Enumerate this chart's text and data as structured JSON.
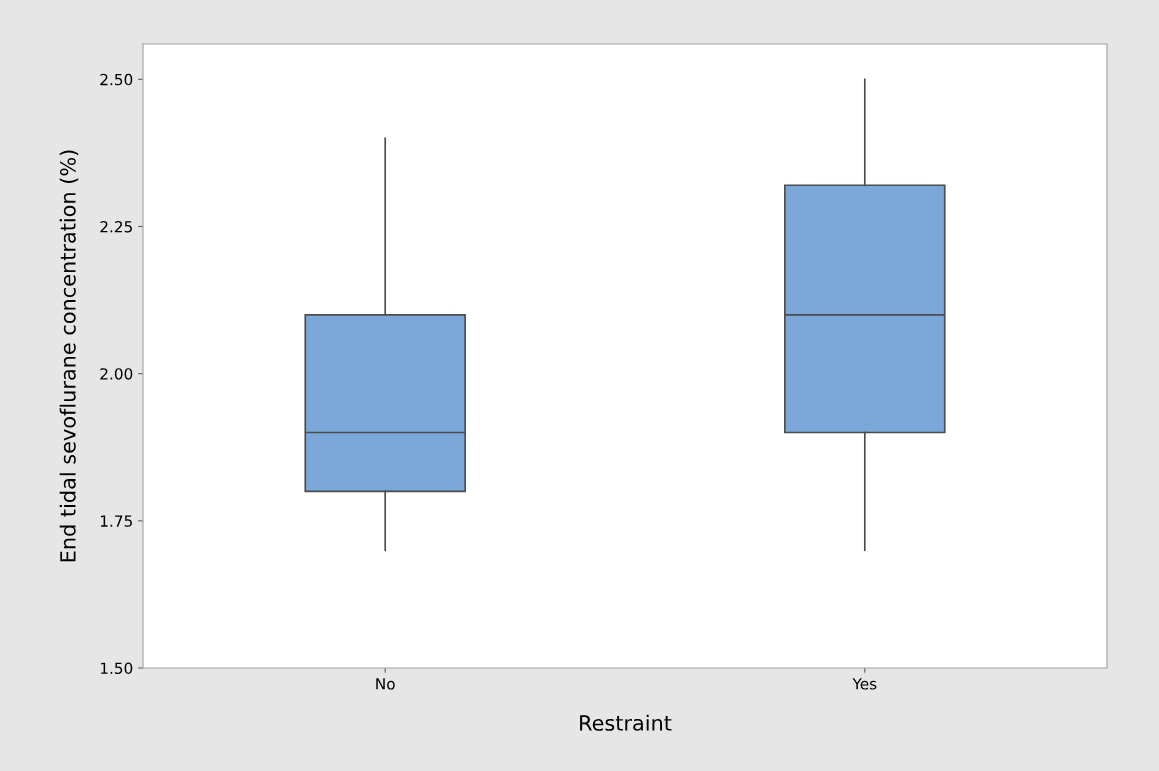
{
  "chart_data": {
    "type": "box",
    "xlabel": "Restraint",
    "ylabel": "End tidal sevoflurane concentration (%)",
    "categories": [
      "No",
      "Yes"
    ],
    "boxes": [
      {
        "low": 1.7,
        "q1": 1.8,
        "median": 1.9,
        "q3": 2.1,
        "high": 2.4
      },
      {
        "low": 1.7,
        "q1": 1.9,
        "median": 2.1,
        "q3": 2.32,
        "high": 2.5
      }
    ],
    "color": "#7ba7d9",
    "ylim": [
      1.5,
      2.56
    ],
    "yticks": [
      {
        "value": 1.5,
        "label": "1.50"
      },
      {
        "value": 1.75,
        "label": "1.75"
      },
      {
        "value": 2.0,
        "label": "2.00"
      },
      {
        "value": 2.25,
        "label": "2.25"
      },
      {
        "value": 2.5,
        "label": "2.50"
      }
    ],
    "grid": false,
    "legend": false
  }
}
